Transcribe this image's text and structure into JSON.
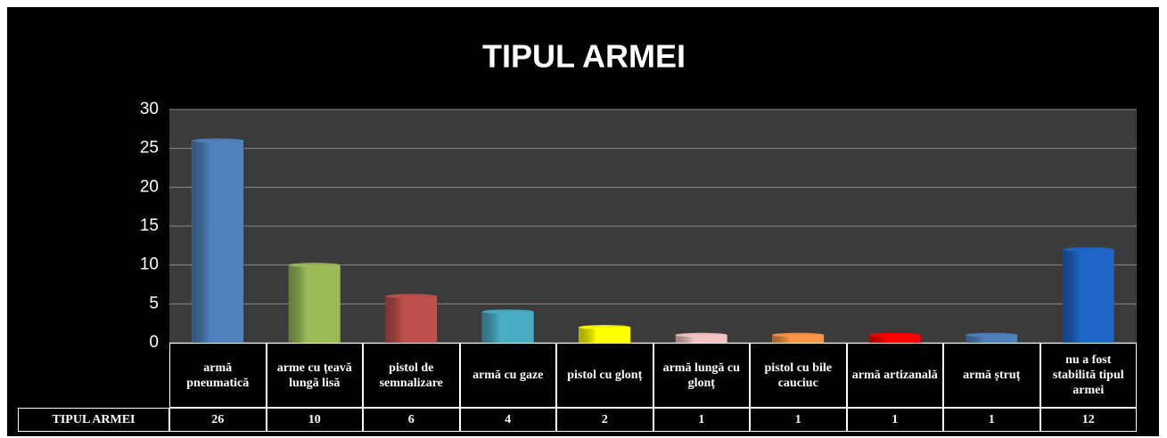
{
  "chart_data": {
    "type": "bar",
    "title": "TIPUL ARMEI",
    "categories": [
      "armă pneumatică",
      "arme cu țeavă lungă lisă",
      "pistol de semnalizare",
      "armă cu gaze",
      "pistol cu glonț",
      "armă lungă cu glonț",
      "pistol cu bile cauciuc",
      "armă artizanală",
      "armă ștruț",
      "nu a fost stabilită tipul armei"
    ],
    "series": [
      {
        "name": "TIPUL ARMEI",
        "values": [
          26,
          10,
          6,
          4,
          2,
          1,
          1,
          1,
          1,
          12
        ],
        "colors": [
          "#4f81bd",
          "#9bbb59",
          "#c0504d",
          "#4bacc6",
          "#ffff00",
          "#f2c4c4",
          "#f79646",
          "#ff0000",
          "#4f81bd",
          "#1f66c8"
        ]
      }
    ],
    "ylim": [
      0,
      30
    ],
    "yticks": [
      0,
      5,
      10,
      15,
      20,
      25,
      30
    ],
    "grid": true
  }
}
